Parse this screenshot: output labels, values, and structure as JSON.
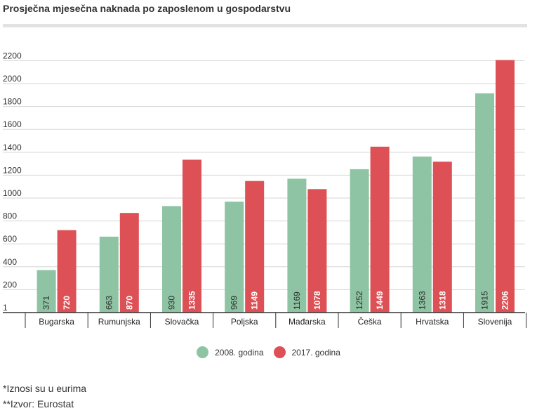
{
  "chart_data": {
    "type": "bar",
    "title": "Prosječna mjesečna naknada po zaposlenom u gospodarstvu",
    "categories": [
      "Bugarska",
      "Rumunjska",
      "Slovačka",
      "Poljska",
      "Mađarska",
      "Češka",
      "Hrvatska",
      "Slovenija"
    ],
    "series": [
      {
        "name": "2008. godina",
        "color": "#8ec4a3",
        "values": [
          371,
          663,
          930,
          969,
          1169,
          1252,
          1363,
          1915
        ]
      },
      {
        "name": "2017. godina",
        "color": "#dd5055",
        "values": [
          720,
          870,
          1335,
          1149,
          1078,
          1449,
          1318,
          2206
        ]
      }
    ],
    "yticks": [
      "1",
      "200",
      "400",
      "600",
      "800",
      "1000",
      "1200",
      "1400",
      "1600",
      "1800",
      "2000",
      "2200"
    ],
    "ylim": [
      1,
      2200
    ],
    "grid": true,
    "legend": "bottom-center"
  },
  "notes": {
    "currency": "*Iznosi su u eurima",
    "source": "**Izvor: Eurostat"
  }
}
